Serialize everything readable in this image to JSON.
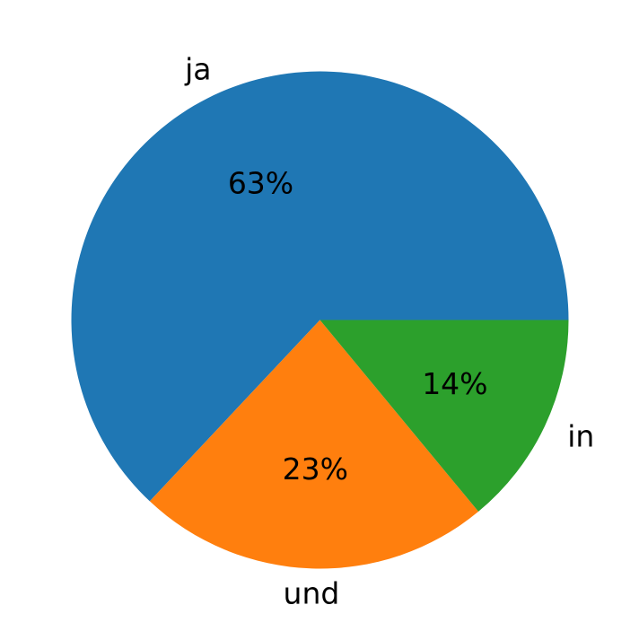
{
  "chart_data": {
    "type": "pie",
    "title": "",
    "categories": [
      "ja",
      "und",
      "in"
    ],
    "values": [
      63,
      23,
      14
    ],
    "labels_pct": [
      "63%",
      "23%",
      "14%"
    ],
    "colors": [
      "#1f77b4",
      "#ff7f0e",
      "#2ca02c"
    ],
    "start_angle_deg": 0,
    "direction": "counterclockwise",
    "legend": "none"
  }
}
